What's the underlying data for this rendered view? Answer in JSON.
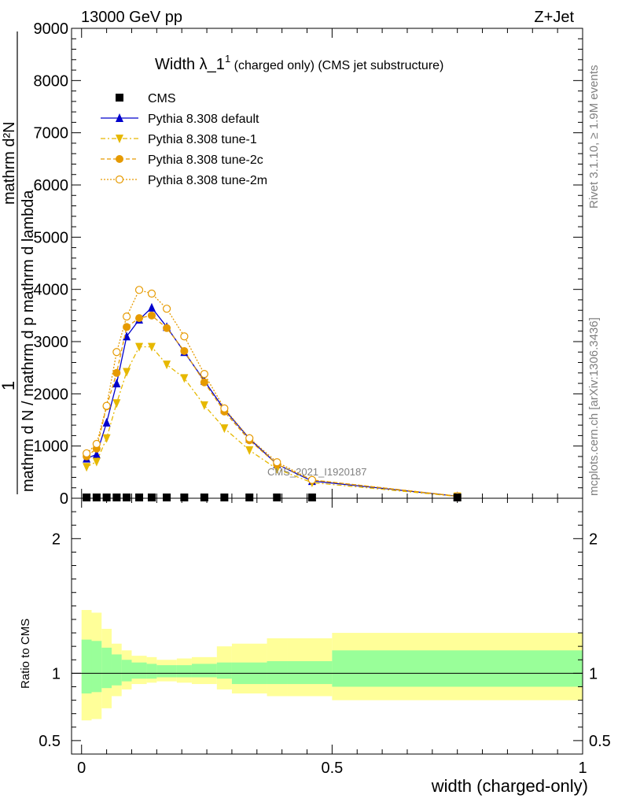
{
  "header": {
    "left": "13000 GeV pp",
    "right": "Z+Jet"
  },
  "side_labels": {
    "rivet": "Rivet 3.1.10, ≥ 1.9M events",
    "mcplots": "mcplots.cern.ch [arXiv:1306.3436]"
  },
  "chart_data": [
    {
      "type": "line",
      "title_main": "Width λ_1",
      "title_sup": "1",
      "title_rest": " (charged only) (CMS jet substructure)",
      "ylabel_lines": [
        "1",
        "mathrm d N / mathrm d p",
        "mathrm d²N",
        "mathrm d p",
        "mathrm d lambda"
      ],
      "ylabel_text": "mathrm d N / mathrm d p mathrm d lambda",
      "ylabel_top": "mathrm d²N",
      "ylabel_one": "1",
      "ylim": [
        0,
        9000
      ],
      "xlim": [
        -0.02,
        1.0
      ],
      "yticks": [
        0,
        1000,
        2000,
        3000,
        4000,
        5000,
        6000,
        7000,
        8000,
        9000
      ],
      "ytick_labels": [
        "0",
        "1000",
        "2000",
        "3000",
        "4000",
        "5000",
        "6000",
        "7000",
        "8000",
        "9000"
      ],
      "watermark": "CMS_2021_I1920187",
      "legend": [
        {
          "name": "CMS",
          "color": "#000000",
          "marker": "square",
          "dash": ""
        },
        {
          "name": "Pythia 8.308 default",
          "color": "#0000cc",
          "marker": "triangle",
          "dash": ""
        },
        {
          "name": "Pythia 8.308 tune-1",
          "color": "#e6b800",
          "marker": "triangle-down",
          "dash": "6,3,2,3"
        },
        {
          "name": "Pythia 8.308 tune-2c",
          "color": "#e69a00",
          "marker": "circle",
          "dash": "5,3"
        },
        {
          "name": "Pythia 8.308 tune-2m",
          "color": "#e69a00",
          "marker": "circle-open",
          "dash": "2,2"
        }
      ],
      "x": [
        0.01,
        0.03,
        0.05,
        0.07,
        0.09,
        0.115,
        0.14,
        0.17,
        0.205,
        0.245,
        0.285,
        0.335,
        0.39,
        0.46,
        0.75
      ],
      "cms_values": [
        15,
        15,
        15,
        15,
        15,
        15,
        15,
        15,
        15,
        15,
        15,
        15,
        15,
        15,
        15
      ],
      "series": [
        {
          "name": "Pythia 8.308 default",
          "values": [
            760,
            840,
            1450,
            2200,
            3100,
            3420,
            3650,
            3280,
            2800,
            2250,
            1700,
            1140,
            650,
            330,
            40
          ]
        },
        {
          "name": "Pythia 8.308 tune-1",
          "values": [
            600,
            700,
            1150,
            1820,
            2420,
            2900,
            2900,
            2560,
            2300,
            1780,
            1340,
            920,
            560,
            300,
            35
          ]
        },
        {
          "name": "Pythia 8.308 tune-2c",
          "values": [
            800,
            950,
            1760,
            2400,
            3280,
            3450,
            3500,
            3260,
            2820,
            2220,
            1660,
            1110,
            650,
            350,
            40
          ]
        },
        {
          "name": "Pythia 8.308 tune-2m",
          "values": [
            860,
            1040,
            1770,
            2800,
            3480,
            3990,
            3920,
            3630,
            3100,
            2380,
            1720,
            1150,
            690,
            350,
            40
          ]
        }
      ]
    },
    {
      "type": "area",
      "ylabel": "Ratio to CMS",
      "xlabel": "width (charged-only)",
      "ylim": [
        0.4,
        2.3
      ],
      "xlim": [
        -0.02,
        1.0
      ],
      "yticks": [
        0.5,
        1,
        2
      ],
      "ytick_labels": [
        "0.5",
        "1",
        "2"
      ],
      "xticks": [
        0,
        0.5,
        1
      ],
      "xtick_labels": [
        "0",
        "0.5",
        "1"
      ],
      "bin_edges": [
        0.0,
        0.02,
        0.04,
        0.06,
        0.08,
        0.1,
        0.13,
        0.15,
        0.19,
        0.22,
        0.27,
        0.3,
        0.37,
        0.41,
        0.5,
        1.0
      ],
      "stat_band": {
        "color": "#99ff99",
        "lo": [
          0.85,
          0.86,
          0.89,
          0.91,
          0.94,
          0.96,
          0.96,
          0.97,
          0.97,
          0.97,
          0.96,
          0.92,
          0.92,
          0.92,
          0.9
        ],
        "hi": [
          1.25,
          1.24,
          1.19,
          1.14,
          1.1,
          1.08,
          1.07,
          1.06,
          1.06,
          1.07,
          1.08,
          1.08,
          1.09,
          1.09,
          1.17
        ]
      },
      "syst_band": {
        "color": "#ffff99",
        "lo": [
          0.65,
          0.66,
          0.74,
          0.83,
          0.88,
          0.92,
          0.93,
          0.94,
          0.93,
          0.92,
          0.88,
          0.85,
          0.83,
          0.83,
          0.8
        ],
        "hi": [
          1.47,
          1.45,
          1.33,
          1.22,
          1.17,
          1.13,
          1.12,
          1.1,
          1.11,
          1.12,
          1.2,
          1.22,
          1.26,
          1.26,
          1.3
        ]
      }
    }
  ]
}
